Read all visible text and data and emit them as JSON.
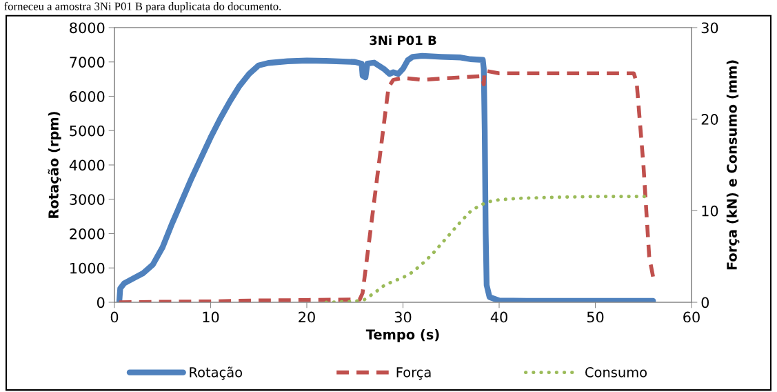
{
  "chart_data": {
    "type": "line",
    "title": "3Ni P01 B",
    "xlabel": "Tempo (s)",
    "ylabel": "Rotação (rpm)",
    "y2label": "Força (kN) e Consumo (mm)",
    "annotations": [
      "forneceu a amostra 3Ni P01 B para duplicata do documento."
    ],
    "xlim": [
      0,
      60
    ],
    "xticks": [
      0,
      10,
      20,
      30,
      40,
      50,
      60
    ],
    "ylim": [
      0,
      8000
    ],
    "yticks": [
      0,
      1000,
      2000,
      3000,
      4000,
      5000,
      6000,
      7000,
      8000
    ],
    "y2lim": [
      0,
      30
    ],
    "y2ticks": [
      0,
      10,
      20,
      30
    ],
    "grid": false,
    "legend": "bottom",
    "series": [
      {
        "name": "Rotação",
        "color": "#4f81bd",
        "line_style": "solid",
        "x": [
          0.5,
          0.6,
          1,
          2,
          3,
          4,
          5,
          6,
          7,
          8,
          9,
          10,
          11,
          12,
          13,
          14,
          15,
          16,
          18,
          20,
          22,
          25,
          25.7,
          25.8,
          26.1,
          26.3,
          27,
          28,
          28.6,
          29,
          29.5,
          30,
          30.5,
          31,
          32,
          34,
          36,
          37,
          38.3,
          38.4,
          38.5,
          38.6,
          38.7,
          39,
          40,
          43,
          50,
          56
        ],
        "values": [
          0,
          400,
          550,
          700,
          850,
          1100,
          1600,
          2300,
          2950,
          3600,
          4200,
          4800,
          5350,
          5850,
          6300,
          6650,
          6900,
          6970,
          7020,
          7040,
          7030,
          7000,
          6950,
          6600,
          6550,
          6950,
          6980,
          6800,
          6650,
          6700,
          6650,
          6800,
          7050,
          7150,
          7180,
          7150,
          7130,
          7080,
          7060,
          6800,
          5000,
          2000,
          500,
          150,
          50,
          40,
          40,
          40
        ]
      },
      {
        "name": "Força",
        "color": "#c0504d",
        "line_style": "dashed",
        "axis": "y2",
        "x": [
          0,
          10,
          15,
          20,
          25.5,
          25.8,
          28.5,
          29,
          30,
          32,
          35,
          38.2,
          38.4,
          38.5,
          40,
          54,
          54.3,
          55,
          55.6,
          56
        ],
        "values": [
          0,
          0.1,
          0.2,
          0.25,
          0.3,
          1,
          23.5,
          24.3,
          24.5,
          24.3,
          24.5,
          24.7,
          23.8,
          25.3,
          25,
          25,
          24,
          15,
          5,
          2.8
        ]
      },
      {
        "name": "Consumo",
        "color": "#9bbb59",
        "line_style": "dotted",
        "axis": "y2",
        "x": [
          22,
          25,
          26,
          27,
          28,
          29,
          30,
          31,
          32,
          33,
          34,
          35,
          36,
          37,
          38,
          39,
          40,
          42,
          45,
          50,
          55.2
        ],
        "values": [
          0,
          0.1,
          0.3,
          1,
          1.8,
          2.3,
          2.7,
          3.3,
          4.2,
          5.2,
          6.4,
          7.6,
          8.8,
          9.9,
          10.6,
          11.0,
          11.2,
          11.35,
          11.45,
          11.55,
          11.55
        ]
      }
    ]
  }
}
